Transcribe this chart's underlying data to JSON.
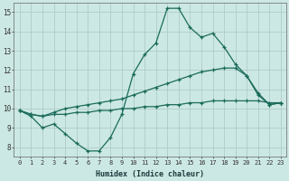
{
  "xlabel": "Humidex (Indice chaleur)",
  "background_color": "#cce8e4",
  "grid_color": "#b0ccc8",
  "line_color": "#1a6b5a",
  "xlim": [
    -0.5,
    23.5
  ],
  "ylim": [
    7.5,
    15.5
  ],
  "x": [
    0,
    1,
    2,
    3,
    4,
    5,
    6,
    7,
    8,
    9,
    10,
    11,
    12,
    13,
    14,
    15,
    16,
    17,
    18,
    19,
    20,
    21,
    22,
    23
  ],
  "line1": [
    9.9,
    9.6,
    9.0,
    9.2,
    8.7,
    8.2,
    7.8,
    7.8,
    8.5,
    9.7,
    11.8,
    12.8,
    13.4,
    15.2,
    15.2,
    14.2,
    13.7,
    13.9,
    13.2,
    12.3,
    11.7,
    10.7,
    10.2,
    10.3
  ],
  "line2": [
    9.9,
    9.7,
    9.6,
    9.8,
    10.0,
    10.1,
    10.2,
    10.3,
    10.4,
    10.5,
    10.7,
    10.9,
    11.1,
    11.3,
    11.5,
    11.7,
    11.9,
    12.0,
    12.1,
    12.1,
    11.7,
    10.8,
    10.2,
    10.3
  ],
  "line3": [
    9.9,
    9.7,
    9.6,
    9.7,
    9.7,
    9.8,
    9.8,
    9.9,
    9.9,
    10.0,
    10.0,
    10.1,
    10.1,
    10.2,
    10.2,
    10.3,
    10.3,
    10.4,
    10.4,
    10.4,
    10.4,
    10.4,
    10.3,
    10.3
  ],
  "yticks": [
    8,
    9,
    10,
    11,
    12,
    13,
    14,
    15
  ],
  "xtick_labels": [
    "0",
    "1",
    "2",
    "3",
    "4",
    "5",
    "6",
    "7",
    "8",
    "9",
    "10",
    "11",
    "12",
    "13",
    "14",
    "15",
    "16",
    "17",
    "18",
    "19",
    "20",
    "21",
    "22",
    "23"
  ]
}
